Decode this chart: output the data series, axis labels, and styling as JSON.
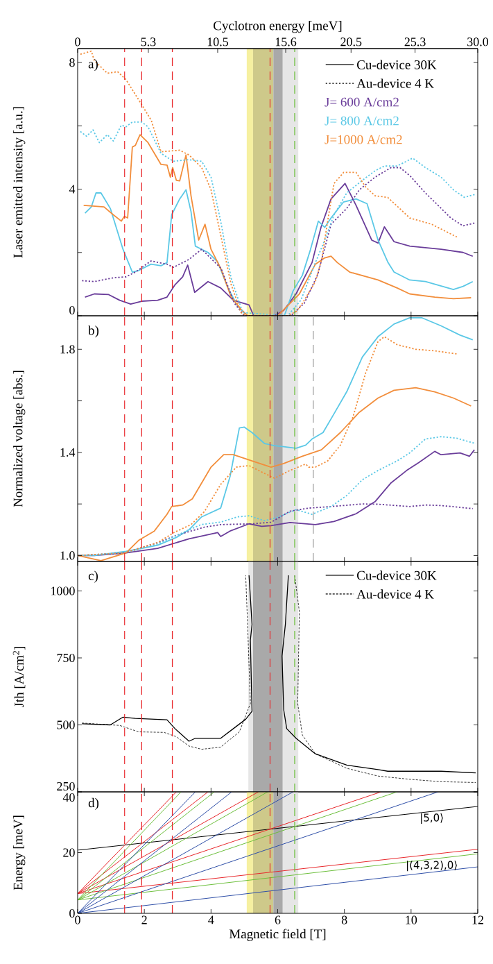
{
  "chart_data": [
    {
      "type": "line",
      "ylabel": "Laser emitted intensity [a.u.]",
      "x2label": "Cyclotron energy [meV]",
      "xlim": [
        0,
        12
      ],
      "xticks": [
        0,
        2,
        4,
        6,
        8,
        10,
        12
      ],
      "ylim": [
        0,
        8.44
      ],
      "yticks": [
        0,
        {
          "value": 2,
          "label": null
        },
        4,
        {
          "value": 6,
          "label": null
        },
        8
      ],
      "x2lim": [
        0,
        30
      ],
      "x2ticks": [
        0,
        5.3,
        10.5,
        15.6,
        20.5,
        25.3,
        {
          "value": 30,
          "label": "30.0"
        }
      ],
      "tick_labels": "y",
      "legend": "top right",
      "annotations": [
        "a)",
        "Cu-device 30K",
        "Au-device 4 K"
      ],
      "series": [
        {
          "name": "J=  600 A/cm2",
          "color": "#6a3d9a",
          "line_style": "solid",
          "x": [
            0.22,
            0.5,
            0.93,
            1.26,
            1.59,
            1.92,
            2.4,
            2.68,
            2.92,
            3.15,
            3.3,
            3.51,
            3.91,
            4.29,
            4.67,
            5.14,
            5.28,
            5.9,
            6.18,
            6.55,
            7.03,
            7.3,
            7.6,
            8.02,
            8.35,
            8.82,
            9.01,
            9.2,
            9.49,
            9.96,
            10.43,
            10.9,
            11.56,
            11.85
          ],
          "values": [
            0.59,
            0.69,
            0.67,
            0.49,
            0.37,
            0.46,
            0.49,
            0.59,
            0.98,
            1.23,
            1.6,
            0.74,
            1.08,
            0.88,
            0.49,
            0.34,
            0,
            0,
            0.17,
            0.69,
            1.68,
            2.8,
            3.69,
            4.18,
            3.49,
            2.39,
            2.3,
            2.81,
            2.34,
            2.2,
            2.15,
            2.1,
            2.0,
            1.88
          ]
        },
        {
          "name": "J=  800 A/cm2",
          "color": "#5bc8e6",
          "line_style": "solid",
          "x": [
            0.22,
            0.41,
            0.55,
            0.7,
            0.98,
            1.36,
            1.64,
            1.83,
            2.2,
            2.5,
            2.68,
            2.82,
            3.06,
            3.25,
            3.4,
            3.53,
            3.72,
            3.91,
            4.2,
            4.5,
            4.8,
            5.1,
            6.2,
            6.46,
            6.74,
            6.98,
            7.22,
            7.41,
            7.6,
            7.97,
            8.35,
            8.68,
            9.01,
            9.3,
            9.49,
            9.96,
            10.43,
            11.27,
            11.56,
            11.85
          ],
          "values": [
            3.24,
            3.44,
            3.88,
            3.88,
            3.39,
            2.1,
            1.38,
            1.43,
            1.63,
            1.58,
            1.68,
            3.19,
            3.69,
            3.98,
            3.29,
            2.2,
            2.1,
            2.0,
            1.7,
            0.9,
            0.3,
            0,
            0,
            0.78,
            1.28,
            2.08,
            2.99,
            2.79,
            3.09,
            3.59,
            3.69,
            3.54,
            2.39,
            1.7,
            1.38,
            1.13,
            1.08,
            0.83,
            0.93,
            1.08
          ]
        },
        {
          "name": "J=1000 A/cm2",
          "color": "#f28e3c",
          "line_style": "solid",
          "x": [
            0.18,
            0.79,
            1.07,
            1.31,
            1.4,
            1.5,
            1.64,
            1.73,
            1.87,
            2.11,
            2.5,
            2.68,
            2.78,
            2.85,
            2.96,
            3.06,
            3.25,
            3.4,
            3.63,
            3.82,
            4.0,
            4.29,
            4.6,
            4.9,
            5.1,
            6.0,
            6.65,
            7.13,
            7.41,
            7.6,
            7.79,
            8.16,
            9.01,
            9.58,
            9.96,
            10.71,
            11.27,
            11.8
          ],
          "values": [
            3.49,
            3.44,
            3.19,
            2.99,
            3.14,
            3.09,
            5.33,
            5.38,
            5.72,
            5.47,
            4.78,
            4.76,
            4.38,
            4.68,
            4.28,
            4.26,
            5.08,
            3.79,
            2.39,
            2.89,
            2.1,
            1.5,
            0.6,
            0.2,
            0,
            0,
            0.69,
            1.63,
            1.83,
            1.88,
            1.68,
            1.38,
            1.13,
            0.88,
            0.69,
            0.59,
            0.54,
            0.57
          ]
        },
        {
          "color": "#6a3d9a",
          "line_style": "dotted",
          "x": [
            0.13,
            0.5,
            1.07,
            1.45,
            1.73,
            2.2,
            2.68,
            2.87,
            3.34,
            3.72,
            4.3,
            4.7,
            5.0,
            6.4,
            6.8,
            7.2,
            7.6,
            8.07,
            8.45,
            8.92,
            9.4,
            9.67,
            9.96,
            10.43,
            10.81,
            11.19,
            11.56,
            11.94
          ],
          "values": [
            1.11,
            1.08,
            1.2,
            1.23,
            1.38,
            1.73,
            1.63,
            1.53,
            1.78,
            2.1,
            1.5,
            0.4,
            0,
            0,
            0.4,
            1.3,
            2.89,
            3.39,
            3.98,
            4.38,
            4.68,
            4.68,
            4.43,
            3.88,
            3.49,
            3.09,
            2.84,
            2.94
          ]
        },
        {
          "color": "#5bc8e6",
          "line_style": "dotted",
          "x": [
            0.08,
            0.27,
            0.46,
            0.65,
            0.89,
            1.07,
            1.31,
            1.45,
            1.64,
            1.92,
            2.11,
            2.5,
            2.87,
            3.34,
            3.72,
            4.0,
            4.29,
            4.6,
            4.95,
            6.3,
            6.7,
            7.1,
            7.41,
            7.69,
            8.07,
            8.54,
            8.92,
            9.2,
            9.58,
            10.05,
            10.43,
            10.9,
            11.27,
            11.6,
            11.94
          ],
          "values": [
            5.82,
            5.67,
            5.87,
            5.47,
            5.72,
            5.52,
            6.02,
            5.97,
            6.12,
            6.12,
            5.97,
            5.13,
            4.88,
            4.93,
            4.88,
            4.38,
            2.99,
            1.2,
            0.1,
            0,
            0.5,
            1.6,
            2.39,
            3.19,
            3.88,
            4.28,
            4.58,
            4.73,
            4.73,
            4.98,
            4.68,
            4.38,
            3.98,
            3.74,
            3.84
          ]
        },
        {
          "color": "#f28e3c",
          "line_style": "dotted",
          "x": [
            0.08,
            0.41,
            0.5,
            0.89,
            1.2,
            1.45,
            1.92,
            2.21,
            2.5,
            3.06,
            3.34,
            3.72,
            4.0,
            4.3,
            4.6,
            4.9,
            5.1,
            6.3,
            6.56,
            6.74,
            7.13,
            7.32,
            7.5,
            7.69,
            7.98,
            8.35,
            8.63,
            8.92,
            9.3,
            9.96,
            10.62,
            11.37
          ],
          "values": [
            8.26,
            8.36,
            8.06,
            7.66,
            7.71,
            7.46,
            6.67,
            6.17,
            5.18,
            5.23,
            5.08,
            4.68,
            3.98,
            2.5,
            1.0,
            0.1,
            0,
            0,
            0.14,
            0.39,
            1.08,
            1.78,
            3.0,
            4.18,
            4.53,
            4.53,
            4.08,
            3.79,
            3.74,
            3.09,
            2.89,
            2.49
          ]
        }
      ],
      "bands": [
        {
          "axis": "x",
          "from": 5.07,
          "to": 5.26,
          "color": "#f6f0a0"
        },
        {
          "axis": "x",
          "from": 5.26,
          "to": 5.87,
          "color": "#cec98a"
        },
        {
          "axis": "x",
          "from": 5.87,
          "to": 6.15,
          "color": "#a9a9a9"
        },
        {
          "axis": "x",
          "from": 6.15,
          "to": 6.62,
          "color": "#e6e6e6"
        }
      ],
      "ref_lines": [
        {
          "axis": "x",
          "value": 1.41,
          "color": "#e8262a",
          "line_style": "dashed"
        },
        {
          "axis": "x",
          "value": 1.92,
          "color": "#e8262a",
          "line_style": "dashed"
        },
        {
          "axis": "x",
          "value": 2.84,
          "color": "#e8262a",
          "line_style": "dashed"
        },
        {
          "axis": "x",
          "value": 5.77,
          "color": "#e8262a",
          "line_style": "dashed"
        },
        {
          "axis": "x",
          "value": 6.51,
          "color": "#6cbf3c",
          "line_style": "dashed"
        }
      ]
    },
    {
      "type": "line",
      "ylabel": "Normalized voltage [abs.]",
      "xlim": [
        0,
        12
      ],
      "xticks": [
        0,
        2,
        4,
        6,
        8,
        10,
        12
      ],
      "ylim": [
        0.977,
        1.93
      ],
      "yticks": [
        {
          "value": 1.0,
          "label": "1.0"
        },
        {
          "value": 1.2,
          "label": null
        },
        1.4,
        {
          "value": 1.6,
          "label": null
        },
        1.8
      ],
      "tick_labels": "y",
      "annotations": [
        "b)"
      ],
      "series": [
        {
          "color": "#6a3d9a",
          "line_style": "solid",
          "x": [
            0,
            0.5,
            1.45,
            2.4,
            3.34,
            4.2,
            4.29,
            4.57,
            5.14,
            5.52,
            5.8,
            6.37,
            7.13,
            7.69,
            8.35,
            8.92,
            9.4,
            9.87,
            10.24,
            10.71,
            10.9,
            11.47,
            11.75,
            11.9
          ],
          "values": [
            1.0,
            1.0,
            1.01,
            1.028,
            1.065,
            1.089,
            1.074,
            1.095,
            1.123,
            1.113,
            1.116,
            1.128,
            1.12,
            1.132,
            1.162,
            1.209,
            1.282,
            1.33,
            1.361,
            1.404,
            1.391,
            1.398,
            1.385,
            1.41
          ]
        },
        {
          "color": "#5bc8e6",
          "line_style": "solid",
          "x": [
            0,
            0.5,
            1.45,
            2.4,
            2.96,
            3.34,
            3.72,
            4.29,
            4.57,
            4.85,
            5.0,
            5.23,
            5.61,
            5.9,
            6.18,
            6.55,
            6.84,
            7.03,
            7.36,
            7.69,
            8.07,
            8.54,
            9.01,
            9.49,
            9.96,
            10.33,
            10.9,
            11.47,
            11.85
          ],
          "values": [
            1.0,
            1.0,
            1.016,
            1.04,
            1.07,
            1.1,
            1.15,
            1.184,
            1.306,
            1.495,
            1.498,
            1.477,
            1.434,
            1.426,
            1.422,
            1.416,
            1.428,
            1.452,
            1.477,
            1.55,
            1.635,
            1.77,
            1.849,
            1.898,
            1.922,
            1.922,
            1.891,
            1.855,
            1.837
          ]
        },
        {
          "color": "#f28e3c",
          "line_style": "solid",
          "x": [
            0,
            0.7,
            1.45,
            1.83,
            2.3,
            2.68,
            2.82,
            3.15,
            3.44,
            4.0,
            4.38,
            4.67,
            5.23,
            5.8,
            6.18,
            6.74,
            7.31,
            7.88,
            8.45,
            9.01,
            9.49,
            10.14,
            10.71,
            11.27,
            11.8
          ],
          "values": [
            1.0,
            0.98,
            1.01,
            1.059,
            1.095,
            1.16,
            1.19,
            1.196,
            1.22,
            1.343,
            1.391,
            1.391,
            1.367,
            1.343,
            1.357,
            1.385,
            1.41,
            1.477,
            1.556,
            1.611,
            1.641,
            1.651,
            1.635,
            1.611,
            1.58
          ]
        },
        {
          "color": "#6a3d9a",
          "line_style": "dotted",
          "x": [
            0,
            1.4,
            2.4,
            3.0,
            3.8,
            4.29,
            5.23,
            5.8,
            6.37,
            6.93,
            7.6,
            8.54,
            9.01,
            9.96,
            10.43,
            10.9,
            11.85
          ],
          "values": [
            1.0,
            1.01,
            1.05,
            1.08,
            1.11,
            1.12,
            1.123,
            1.129,
            1.172,
            1.184,
            1.19,
            1.2,
            1.199,
            1.19,
            1.196,
            1.194,
            1.182
          ]
        },
        {
          "color": "#5bc8e6",
          "line_style": "dotted",
          "x": [
            0,
            1.4,
            2.4,
            3.0,
            3.7,
            4.3,
            4.8,
            5.14,
            5.61,
            5.99,
            6.55,
            7.03,
            7.6,
            8.07,
            8.54,
            9.01,
            9.58,
            9.96,
            10.43,
            10.9,
            11.37,
            11.94
          ],
          "values": [
            1.0,
            1.01,
            1.045,
            1.08,
            1.12,
            1.13,
            1.15,
            1.154,
            1.135,
            1.148,
            1.178,
            1.16,
            1.19,
            1.233,
            1.294,
            1.33,
            1.367,
            1.398,
            1.452,
            1.461,
            1.455,
            1.434
          ]
        },
        {
          "color": "#f28e3c",
          "line_style": "dotted",
          "x": [
            0,
            1.4,
            2.4,
            2.9,
            3.4,
            3.8,
            4.29,
            4.76,
            5.14,
            5.52,
            5.9,
            6.37,
            6.84,
            6.93,
            7.13,
            7.5,
            7.88,
            8.26,
            8.64,
            9.01,
            9.2,
            9.58,
            10.14,
            10.71,
            11.37
          ],
          "values": [
            1.0,
            1.01,
            1.05,
            1.09,
            1.12,
            1.17,
            1.276,
            1.343,
            1.349,
            1.324,
            1.3,
            1.33,
            1.355,
            1.343,
            1.343,
            1.367,
            1.428,
            1.538,
            1.709,
            1.83,
            1.849,
            1.818,
            1.8,
            1.794,
            1.782
          ]
        }
      ],
      "bands": [
        {
          "axis": "x",
          "from": 5.07,
          "to": 5.26,
          "color": "#f6f0a0"
        },
        {
          "axis": "x",
          "from": 5.26,
          "to": 5.87,
          "color": "#cec98a"
        },
        {
          "axis": "x",
          "from": 5.87,
          "to": 6.15,
          "color": "#a9a9a9"
        },
        {
          "axis": "x",
          "from": 6.15,
          "to": 6.62,
          "color": "#e6e6e6"
        }
      ],
      "ref_lines": [
        {
          "axis": "x",
          "value": 1.41,
          "color": "#e8262a",
          "line_style": "dashed"
        },
        {
          "axis": "x",
          "value": 1.92,
          "color": "#e8262a",
          "line_style": "dashed"
        },
        {
          "axis": "x",
          "value": 2.84,
          "color": "#e8262a",
          "line_style": "dashed"
        },
        {
          "axis": "x",
          "value": 5.77,
          "color": "#e8262a",
          "line_style": "dashed"
        },
        {
          "axis": "x",
          "value": 6.51,
          "color": "#6cbf3c",
          "line_style": "dashed"
        },
        {
          "axis": "x",
          "value": 7.07,
          "color": "#333333",
          "line_style": "dashed"
        }
      ]
    },
    {
      "type": "line",
      "ylabel": "Jth [A/cm$^{2}$]",
      "xlim": [
        0,
        12
      ],
      "xticks": [
        0,
        2,
        4,
        6,
        8,
        10,
        12
      ],
      "ylim": [
        250,
        1110
      ],
      "yticks": [
        250,
        500,
        750,
        1000
      ],
      "tick_labels": "y",
      "annotations": [
        "c)",
        "Cu-device 30K",
        "Au-device 4 K"
      ],
      "series": [
        {
          "color": "#000000",
          "line_style": "solid",
          "x": [
            0.13,
            0.98,
            1.36,
            1.73,
            2.68,
            2.92,
            3.34,
            3.53,
            4.29,
            4.67,
            5.04,
            5.23,
            5.18,
            5.23,
            5.14,
            null,
            6.32,
            6.23,
            6.13,
            6.18,
            6.27,
            6.55,
            7.13,
            8.07,
            9.01,
            9.3,
            9.96,
            10.9,
            11.94
          ],
          "values": [
            504,
            500,
            529,
            524,
            519,
            486,
            439,
            450,
            450,
            486,
            521,
            551,
            816,
            875,
            1058,
            null,
            1058,
            875,
            757,
            557,
            486,
            450,
            392,
            350,
            333,
            327,
            327,
            327,
            321
          ]
        },
        {
          "color": "#000000",
          "line_style": "dashed",
          "x": [
            0.13,
            1.26,
            1.83,
            2.59,
            2.96,
            3.34,
            3.72,
            4.29,
            4.85,
            5.18,
            5.09,
            5.04,
            null,
            6.51,
            6.65,
            6.6,
            6.74,
            7.13,
            8.07,
            9.01,
            9.96,
            10.9,
            11.94
          ],
          "values": [
            507,
            498,
            474,
            472,
            456,
            421,
            409,
            417,
            474,
            580,
            899,
            1058,
            null,
            1058,
            922,
            580,
            462,
            392,
            338,
            309,
            297,
            288,
            285
          ]
        }
      ],
      "bands": [
        {
          "axis": "x",
          "from": 5.12,
          "to": 5.26,
          "color": "#e6e6e6"
        },
        {
          "axis": "x",
          "from": 5.26,
          "to": 6.15,
          "color": "#a9a9a9"
        },
        {
          "axis": "x",
          "from": 6.15,
          "to": 6.62,
          "color": "#e6e6e6"
        }
      ],
      "ref_lines": [
        {
          "axis": "x",
          "value": 1.41,
          "color": "#e8262a",
          "line_style": "dashed"
        },
        {
          "axis": "x",
          "value": 1.92,
          "color": "#e8262a",
          "line_style": "dashed"
        },
        {
          "axis": "x",
          "value": 2.84,
          "color": "#e8262a",
          "line_style": "dashed"
        },
        {
          "axis": "x",
          "value": 5.77,
          "color": "#e8262a",
          "line_style": "dashed"
        },
        {
          "axis": "x",
          "value": 6.51,
          "color": "#6cbf3c",
          "line_style": "dashed"
        }
      ]
    },
    {
      "type": "line",
      "xlabel": "Magnetic field [T]",
      "ylabel": "Energy [meV]",
      "xlim": [
        0,
        12
      ],
      "xticks": [
        0,
        2,
        4,
        6,
        8,
        10,
        12
      ],
      "ylim": [
        0,
        40
      ],
      "yticks": [
        0,
        20,
        40
      ],
      "annotations": [
        "d)",
        "|5,0⟩",
        "|(4,3,2),0⟩"
      ],
      "series": [
        {
          "color": "#000000",
          "x": [
            0,
            12
          ],
          "values": [
            20.8,
            35.2
          ]
        },
        {
          "color": "#e8262a",
          "x": [
            0,
            12
          ],
          "values": [
            6.5,
            21.1
          ]
        },
        {
          "color": "#6cbf3c",
          "x": [
            0,
            12
          ],
          "values": [
            4.4,
            19.6
          ]
        },
        {
          "color": "#2f4fa8",
          "x": [
            0,
            12
          ],
          "values": [
            0,
            15.3
          ]
        },
        {
          "color": "#e8262a",
          "x": [
            0,
            2.96
          ],
          "values": [
            6.5,
            40
          ]
        },
        {
          "color": "#e8262a",
          "x": [
            0,
            3.91
          ],
          "values": [
            6.5,
            40
          ]
        },
        {
          "color": "#e8262a",
          "x": [
            0,
            5.42
          ],
          "values": [
            6.5,
            40
          ]
        },
        {
          "color": "#e8262a",
          "x": [
            0,
            9.1
          ],
          "values": [
            6.5,
            40
          ]
        },
        {
          "color": "#6cbf3c",
          "x": [
            0,
            3.1
          ],
          "values": [
            4.4,
            40
          ]
        },
        {
          "color": "#6cbf3c",
          "x": [
            0,
            4.1
          ],
          "values": [
            4.4,
            40
          ]
        },
        {
          "color": "#6cbf3c",
          "x": [
            0,
            5.7
          ],
          "values": [
            4.4,
            40
          ]
        },
        {
          "color": "#6cbf3c",
          "x": [
            0,
            9.58
          ],
          "values": [
            4.4,
            40
          ]
        },
        {
          "color": "#2f4fa8",
          "x": [
            0,
            3.53
          ],
          "values": [
            0,
            40
          ]
        },
        {
          "color": "#2f4fa8",
          "x": [
            0,
            4.62
          ],
          "values": [
            0,
            40
          ]
        },
        {
          "color": "#2f4fa8",
          "x": [
            0,
            6.46
          ],
          "values": [
            0,
            40
          ]
        },
        {
          "color": "#2f4fa8",
          "x": [
            0,
            10.81
          ],
          "values": [
            0,
            40
          ]
        }
      ],
      "bands": [
        {
          "axis": "x",
          "from": 5.07,
          "to": 5.26,
          "color": "#f6f0a0"
        },
        {
          "axis": "x",
          "from": 5.26,
          "to": 5.87,
          "color": "#cec98a"
        },
        {
          "axis": "x",
          "from": 5.87,
          "to": 6.15,
          "color": "#a9a9a9"
        },
        {
          "axis": "x",
          "from": 6.15,
          "to": 6.62,
          "color": "#e6e6e6"
        }
      ],
      "ref_lines": [
        {
          "axis": "x",
          "value": 1.41,
          "color": "#e8262a",
          "line_style": "dashed"
        },
        {
          "axis": "x",
          "value": 1.92,
          "color": "#e8262a",
          "line_style": "dashed"
        },
        {
          "axis": "x",
          "value": 2.84,
          "color": "#e8262a",
          "line_style": "dashed"
        },
        {
          "axis": "x",
          "value": 5.77,
          "color": "#e8262a",
          "line_style": "dashed"
        },
        {
          "axis": "x",
          "value": 6.51,
          "color": "#6cbf3c",
          "line_style": "dashed"
        }
      ]
    }
  ]
}
